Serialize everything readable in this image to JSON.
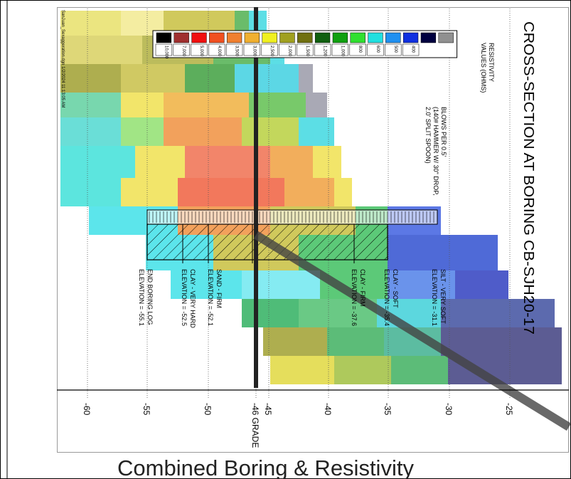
{
  "title": "CROSS-SECTION AT BORING CB-SJH20-17",
  "file_stamp": "SanJuan_Sexaggeration.dgn 1/2/2024 11:13:05 AM",
  "legend": {
    "title_lines": [
      "RESISTIVITY",
      "VALUES (OHMS)"
    ],
    "values": [
      "10,000",
      "7,000",
      "5,000",
      "4,000",
      "3,500",
      "3,000",
      "2,500",
      "2,000",
      "1,500",
      "1,200",
      "1,000",
      "800",
      "600",
      "500",
      "400"
    ]
  },
  "blows_note": [
    "BLOWS PER 0.5'",
    "(140# HAMMER W/ 30\" DROP,",
    "2.0' SPLIT SPOON)"
  ],
  "strata": [
    {
      "name": "SILT - VERY SOFT",
      "elevation": "ELEVATION = -31.1"
    },
    {
      "name": "CLAY - SOFT",
      "elevation": "ELEVATION = -35.4"
    },
    {
      "name": "CLAY - FIRM",
      "elevation": "ELEVATION = -37.6"
    },
    {
      "name": "SAND - FIRM",
      "elevation": "ELEVATION = -52.1"
    },
    {
      "name": "CLAY - VERY HARD",
      "elevation": "ELEVATION = -52.5"
    },
    {
      "name": "END BORING LOG",
      "elevation": "ELEVATION = -55.1"
    }
  ],
  "axis_labels": [
    "-60",
    "-55",
    "-50",
    "-46 GRADE",
    "-45",
    "-40",
    "-35",
    "-30",
    "-25"
  ],
  "caption": "Combined Boring & Resistivity"
}
